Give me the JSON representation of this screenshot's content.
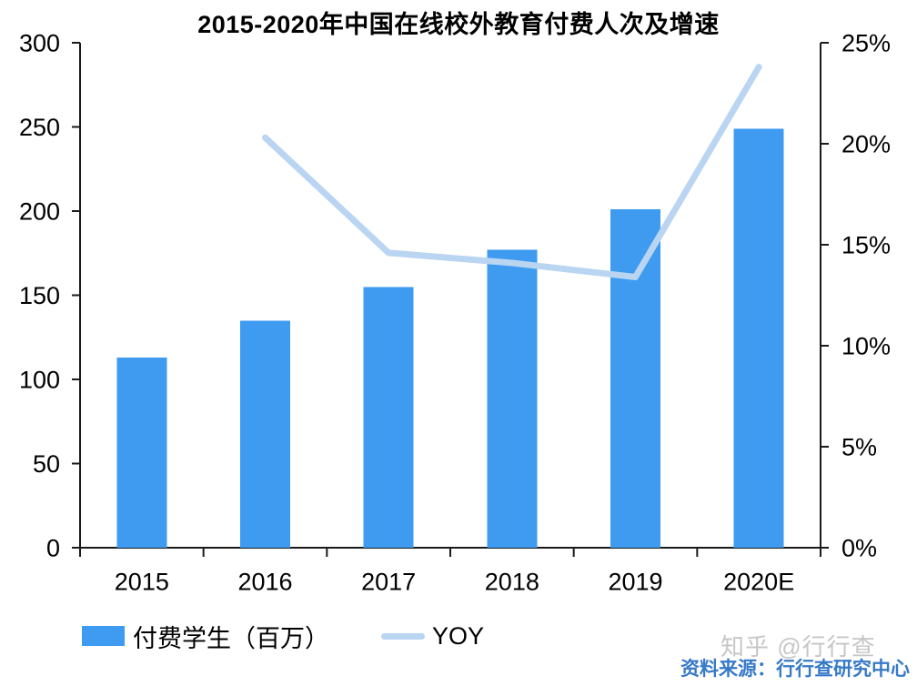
{
  "title": "2015-2020年中国在线校外教育付费人次及增速",
  "chart_data": {
    "type": "bar",
    "subtype": "combo-bar-line",
    "title": "2015-2020年中国在线校外教育付费人次及增速",
    "categories": [
      "2015",
      "2016",
      "2017",
      "2018",
      "2019",
      "2020E"
    ],
    "series": [
      {
        "name": "付费学生（百万）",
        "type": "bar",
        "axis": "left",
        "color": "#3E9BF0",
        "values": [
          113,
          135,
          155,
          177,
          201,
          249
        ]
      },
      {
        "name": "YOY",
        "type": "line",
        "axis": "right",
        "unit": "%",
        "color": "#B9D5F1",
        "values": [
          null,
          20.3,
          14.6,
          14.1,
          13.4,
          23.8
        ]
      }
    ],
    "left_axis": {
      "min": 0,
      "max": 300,
      "step": 50,
      "tick_labels": [
        "0",
        "50",
        "100",
        "150",
        "200",
        "250",
        "300"
      ]
    },
    "right_axis": {
      "min": 0,
      "max": 25,
      "step": 5,
      "tick_labels": [
        "0%",
        "5%",
        "10%",
        "15%",
        "20%",
        "25%"
      ]
    },
    "grid": false,
    "legend_position": "bottom-left"
  },
  "legend": {
    "bar_label": "付费学生（百万）",
    "line_label": "YOY"
  },
  "footer": {
    "watermark": "知乎 @行行查",
    "source": "资料来源：行行查研究中心"
  },
  "colors": {
    "bar": "#3E9BF0",
    "line": "#B9D5F1",
    "axis": "#1a1a1a",
    "tick_text": "#000000",
    "source_text": "#3779C7",
    "watermark": "#C6C6C6"
  }
}
